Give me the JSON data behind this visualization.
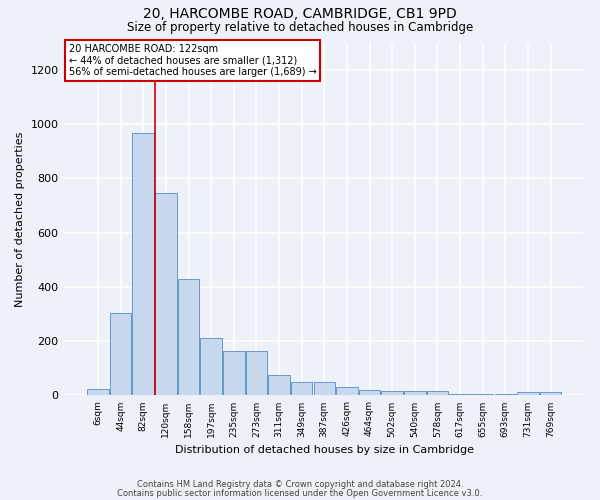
{
  "title1": "20, HARCOMBE ROAD, CAMBRIDGE, CB1 9PD",
  "title2": "Size of property relative to detached houses in Cambridge",
  "xlabel": "Distribution of detached houses by size in Cambridge",
  "ylabel": "Number of detached properties",
  "bar_color": "#c8d8ee",
  "bar_edge_color": "#6699cc",
  "categories": [
    "6sqm",
    "44sqm",
    "82sqm",
    "120sqm",
    "158sqm",
    "197sqm",
    "235sqm",
    "273sqm",
    "311sqm",
    "349sqm",
    "387sqm",
    "426sqm",
    "464sqm",
    "502sqm",
    "540sqm",
    "578sqm",
    "617sqm",
    "655sqm",
    "693sqm",
    "731sqm",
    "769sqm"
  ],
  "values": [
    25,
    305,
    965,
    745,
    430,
    210,
    165,
    165,
    75,
    50,
    50,
    32,
    20,
    18,
    18,
    15,
    5,
    5,
    5,
    13,
    13
  ],
  "ylim": [
    0,
    1300
  ],
  "yticks": [
    0,
    200,
    400,
    600,
    800,
    1000,
    1200
  ],
  "annotation_text": "20 HARCOMBE ROAD: 122sqm\n← 44% of detached houses are smaller (1,312)\n56% of semi-detached houses are larger (1,689) →",
  "annotation_box_color": "#ffffff",
  "annotation_border_color": "#cc0000",
  "vline_color": "#cc0000",
  "vline_x": 2.5,
  "footer1": "Contains HM Land Registry data © Crown copyright and database right 2024.",
  "footer2": "Contains public sector information licensed under the Open Government Licence v3.0.",
  "bg_color": "#eef2f8",
  "plot_bg_color": "#eef2f8",
  "grid_color": "#ffffff"
}
